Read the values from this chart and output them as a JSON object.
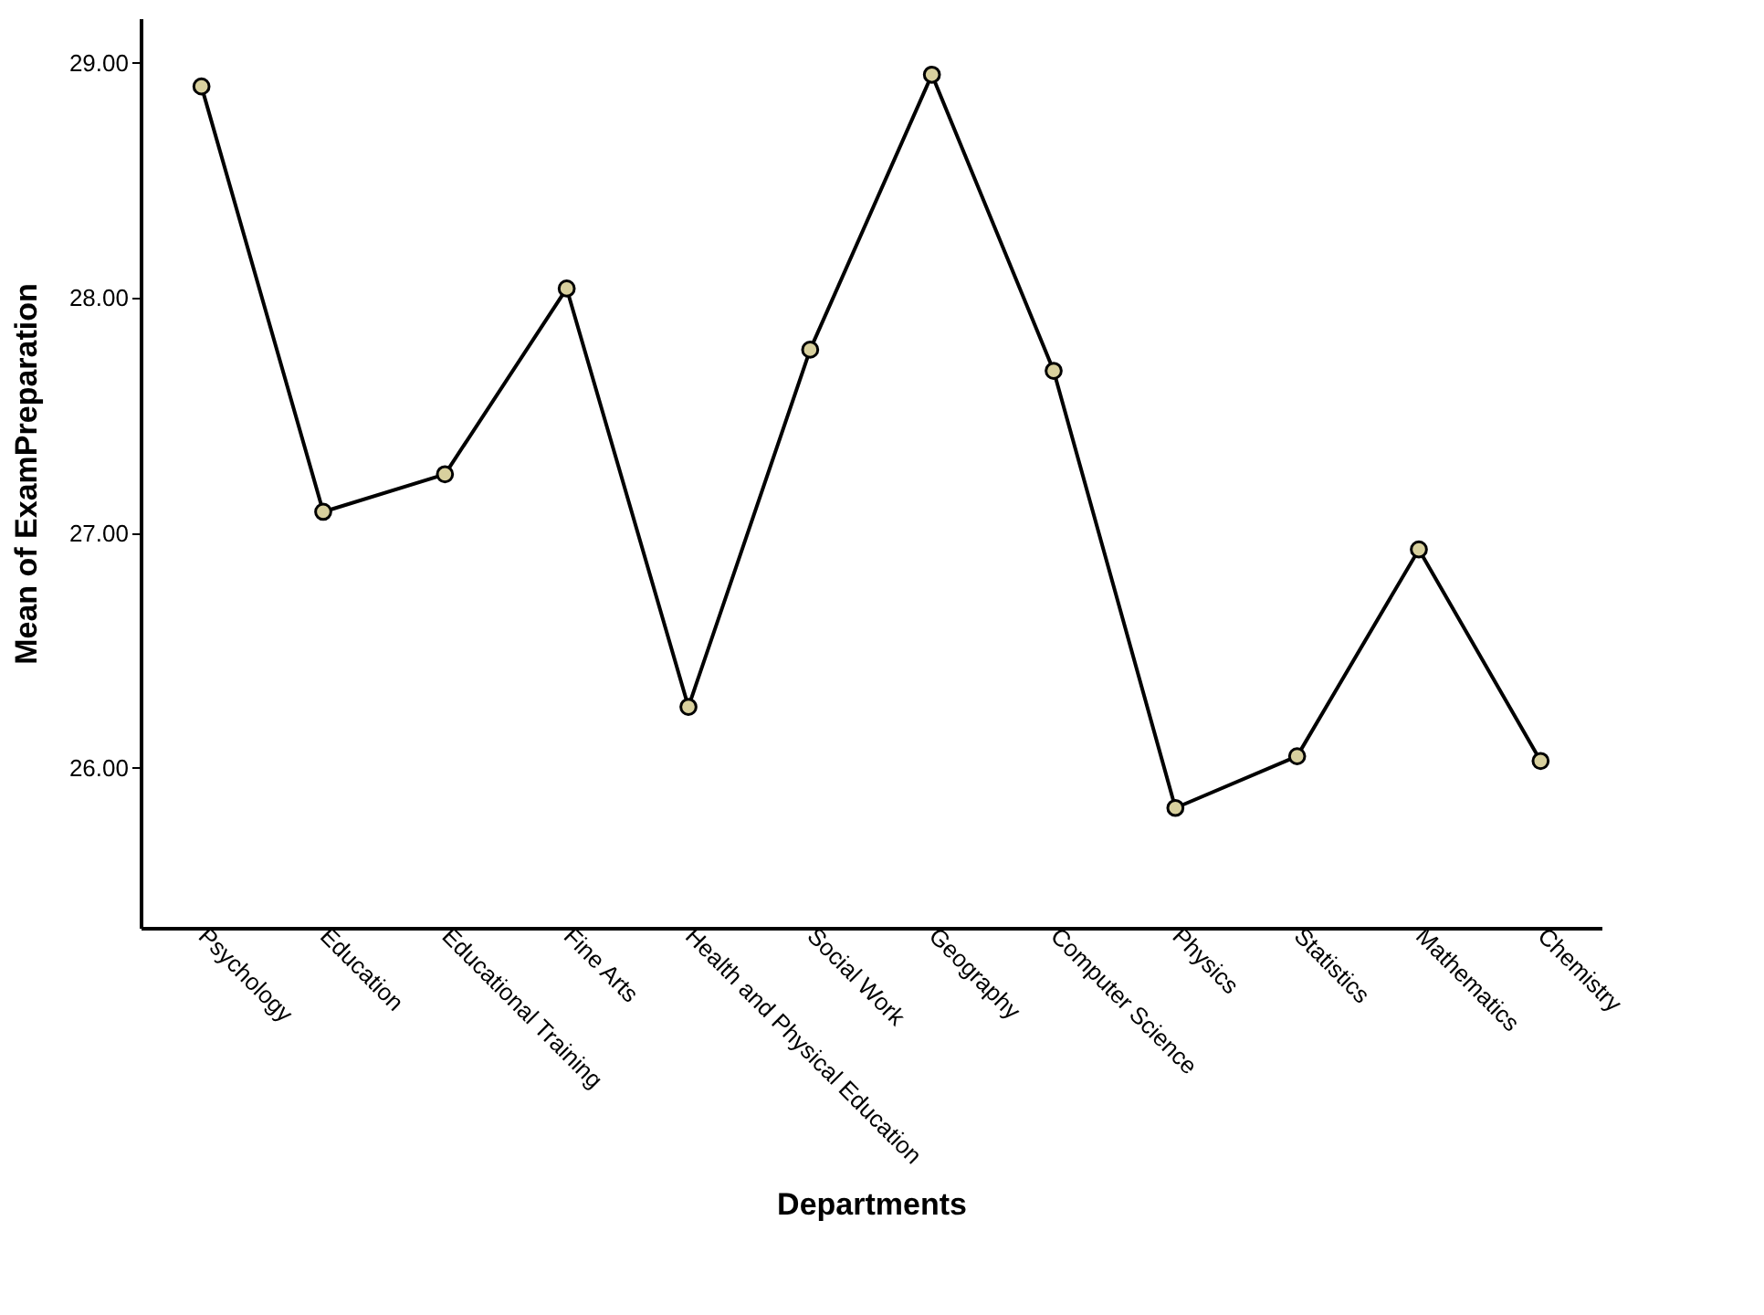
{
  "chart_data": {
    "type": "line",
    "xlabel": "Departments",
    "ylabel": "Mean of ExamPreparation",
    "categories": [
      "Psychology",
      "Education",
      "Educational Training",
      "Fine Arts",
      "Health and Physical Education",
      "Social Work",
      "Geography",
      "Computer Science",
      "Physics",
      "Statistics",
      "Mathematics",
      "Chemistry"
    ],
    "series": [
      {
        "color": "#000000",
        "values": [
          28.9,
          27.09,
          27.25,
          28.04,
          26.26,
          27.78,
          28.95,
          27.69,
          25.83,
          26.05,
          26.93,
          26.03
        ]
      }
    ],
    "ylim": [
      25.32,
      29.19
    ],
    "yticks": [
      {
        "value": 26,
        "label": "26.00"
      },
      {
        "value": 27,
        "label": "27.00"
      },
      {
        "value": 28,
        "label": "28.00"
      },
      {
        "value": 29,
        "label": "29.00"
      }
    ],
    "grid": false,
    "marker": "circle",
    "line_style": "solid"
  }
}
